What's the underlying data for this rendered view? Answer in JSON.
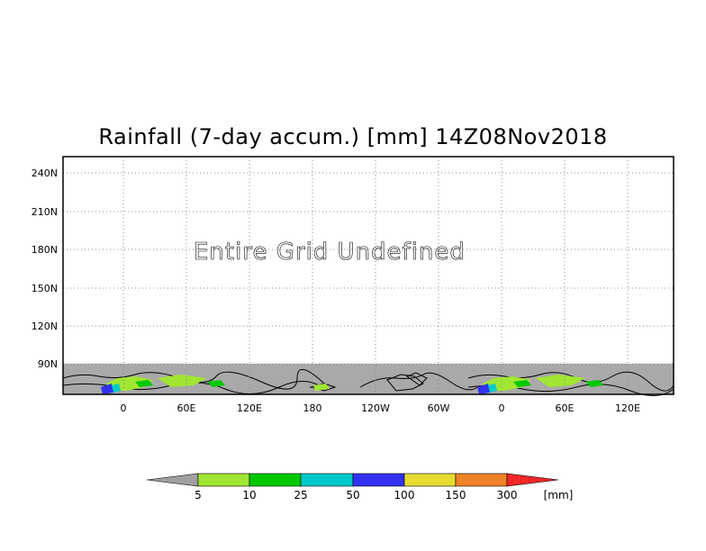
{
  "title": "Rainfall (7-day accum.) [mm] 14Z08Nov2018",
  "undefined_message": "Entire Grid Undefined",
  "map": {
    "lat_labels": [
      "240N",
      "210N",
      "180N",
      "150N",
      "120N",
      "90N"
    ],
    "lon_labels": [
      "0",
      "60E",
      "120E",
      "180",
      "120W",
      "60W",
      "0",
      "60E",
      "120E"
    ],
    "land_color": "#a9a9a9",
    "grid": true
  },
  "colorbar": {
    "unit": "[mm]",
    "levels": [
      "5",
      "10",
      "25",
      "50",
      "100",
      "150",
      "300"
    ],
    "below_color": "#a0a0a0",
    "colors": [
      "#a0e632",
      "#00c800",
      "#00c8c8",
      "#3232f0",
      "#e6dc32",
      "#f08228"
    ],
    "above_color": "#f02828"
  }
}
